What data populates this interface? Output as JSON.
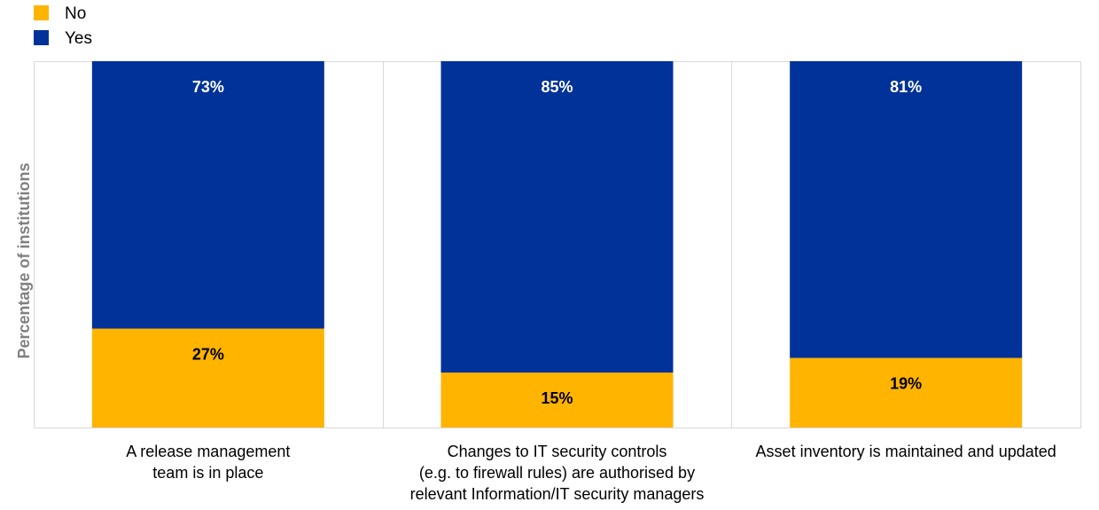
{
  "chart_data": {
    "type": "bar",
    "stacked": true,
    "normalized": true,
    "ylabel": "Percentage of institutions",
    "xlabel": "",
    "ylim": [
      0,
      100
    ],
    "grid": false,
    "legend_position": "top-left",
    "categories": [
      [
        "A release management",
        "team is in place"
      ],
      [
        "Changes to IT security controls",
        "(e.g. to firewall rules) are authorised by",
        "relevant Information/IT security managers"
      ],
      [
        "Asset inventory is maintained and updated"
      ]
    ],
    "series": [
      {
        "name": "No",
        "values": [
          27,
          15,
          19
        ],
        "labels": [
          "27%",
          "15%",
          "19%"
        ],
        "color": "#FFB400",
        "label_color": "#000000"
      },
      {
        "name": "Yes",
        "values": [
          73,
          85,
          81
        ],
        "labels": [
          "73%",
          "85%",
          "81%"
        ],
        "color": "#003299",
        "label_color": "#FFFFFF"
      }
    ]
  }
}
